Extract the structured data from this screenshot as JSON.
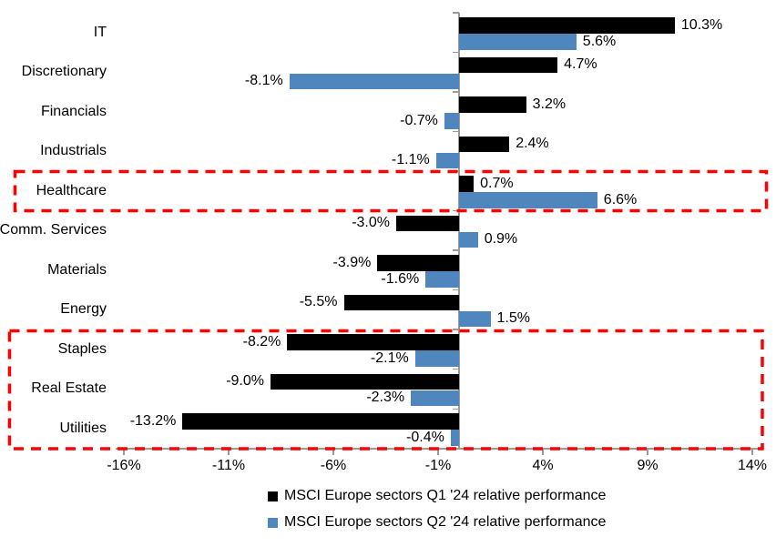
{
  "chart_data": {
    "type": "bar",
    "orientation": "horizontal",
    "title": "",
    "xlabel": "",
    "ylabel": "",
    "categories": [
      "IT",
      "Discretionary",
      "Financials",
      "Industrials",
      "Healthcare",
      "Comm. Services",
      "Materials",
      "Energy",
      "Staples",
      "Real Estate",
      "Utilities"
    ],
    "series": [
      {
        "name": "MSCI Europe sectors Q1 '24 relative performance",
        "color": "#000000",
        "values": [
          10.3,
          4.7,
          3.2,
          2.4,
          0.7,
          -3.0,
          -3.9,
          -5.5,
          -8.2,
          -9.0,
          -13.2
        ],
        "labels": [
          "10.3%",
          "4.7%",
          "3.2%",
          "2.4%",
          "0.7%",
          "-3.0%",
          "-3.9%",
          "-5.5%",
          "-8.2%",
          "-9.0%",
          "-13.2%"
        ]
      },
      {
        "name": "MSCI Europe sectors Q2 '24 relative performance",
        "color": "#4f86bd",
        "values": [
          5.6,
          -8.1,
          -0.7,
          -1.1,
          6.6,
          0.9,
          -1.6,
          1.5,
          -2.1,
          -2.3,
          -0.4
        ],
        "labels": [
          "5.6%",
          "-8.1%",
          "-0.7%",
          "-1.1%",
          "6.6%",
          "0.9%",
          "-1.6%",
          "1.5%",
          "-2.1%",
          "-2.3%",
          "-0.4%"
        ]
      }
    ],
    "x_ticks": [
      {
        "value": -16,
        "label": "-16%"
      },
      {
        "value": -11,
        "label": "-11%"
      },
      {
        "value": -6,
        "label": "-6%"
      },
      {
        "value": -1,
        "label": "-1%"
      },
      {
        "value": 4,
        "label": "4%"
      },
      {
        "value": 9,
        "label": "9%"
      },
      {
        "value": 14,
        "label": "14%"
      }
    ],
    "xlim": [
      -17.5,
      14.5
    ],
    "grid": false,
    "legend_position": "bottom",
    "axis_color": "#9a9a9a",
    "highlight_color": "#ff0000",
    "highlights": [
      {
        "name": "healthcare-highlight",
        "categories": [
          "Healthcare"
        ]
      },
      {
        "name": "defensives-highlight",
        "categories": [
          "Staples",
          "Real Estate",
          "Utilities"
        ]
      }
    ]
  }
}
